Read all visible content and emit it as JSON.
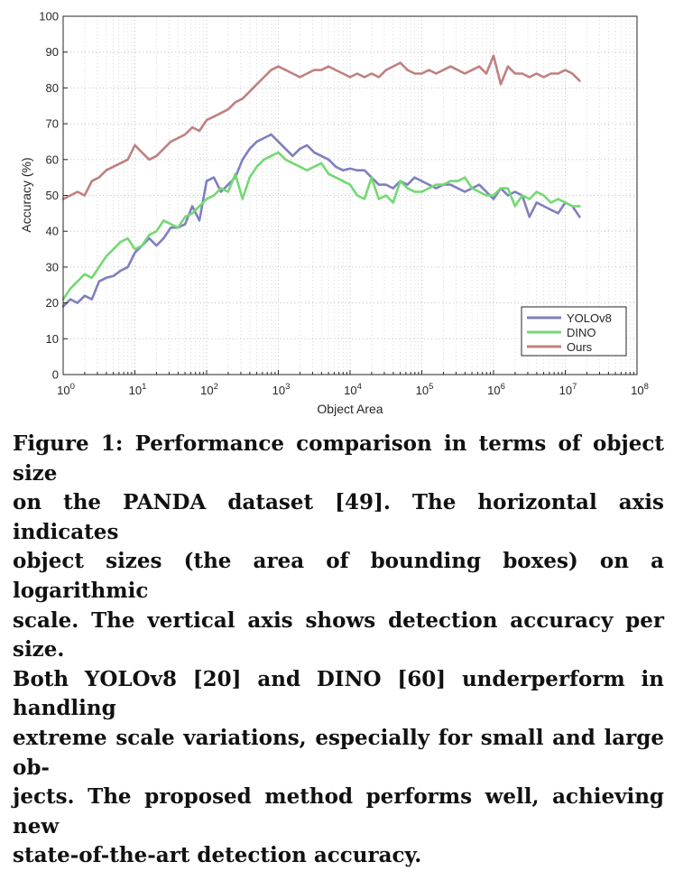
{
  "chart_data": {
    "type": "line",
    "xscale": "log",
    "xlabel": "Object Area",
    "ylabel": "Accuracy (%)",
    "xlim": [
      1,
      100000000
    ],
    "ylim": [
      0,
      100
    ],
    "grid": true,
    "legend_position": "bottom-right",
    "y_ticks": [
      "0",
      "10",
      "20",
      "30",
      "40",
      "50",
      "60",
      "70",
      "80",
      "90",
      "100"
    ],
    "x_ticks": [
      {
        "base": "10",
        "exp": "0"
      },
      {
        "base": "10",
        "exp": "1"
      },
      {
        "base": "10",
        "exp": "2"
      },
      {
        "base": "10",
        "exp": "3"
      },
      {
        "base": "10",
        "exp": "4"
      },
      {
        "base": "10",
        "exp": "5"
      },
      {
        "base": "10",
        "exp": "6"
      },
      {
        "base": "10",
        "exp": "7"
      },
      {
        "base": "10",
        "exp": "8"
      }
    ],
    "series": [
      {
        "name": "YOLOv8",
        "color": "#7f7fbf",
        "log10_x": [
          0,
          0.1,
          0.2,
          0.3,
          0.4,
          0.5,
          0.6,
          0.7,
          0.8,
          0.9,
          1,
          1.1,
          1.2,
          1.3,
          1.4,
          1.5,
          1.6,
          1.7,
          1.8,
          1.9,
          2,
          2.1,
          2.2,
          2.3,
          2.4,
          2.5,
          2.6,
          2.7,
          2.8,
          2.9,
          3,
          3.1,
          3.2,
          3.3,
          3.4,
          3.5,
          3.6,
          3.7,
          3.8,
          3.9,
          4,
          4.1,
          4.2,
          4.3,
          4.4,
          4.5,
          4.6,
          4.7,
          4.8,
          4.9,
          5,
          5.1,
          5.2,
          5.3,
          5.4,
          5.5,
          5.6,
          5.7,
          5.8,
          5.9,
          6,
          6.1,
          6.2,
          6.3,
          6.4,
          6.5,
          6.6,
          6.7,
          6.8,
          6.9,
          7,
          7.1,
          7.2
        ],
        "values": [
          19,
          21,
          20,
          22,
          21,
          26,
          27,
          27.5,
          29,
          30,
          34,
          36,
          38,
          36,
          38,
          41,
          41,
          42,
          47,
          43,
          54,
          55,
          51,
          53,
          55,
          60,
          63,
          65,
          66,
          67,
          65,
          63,
          61,
          63,
          64,
          62,
          61,
          60,
          58,
          57,
          57.5,
          57,
          57,
          55,
          53,
          53,
          52,
          54,
          53,
          55,
          54,
          53,
          52,
          53,
          53,
          52,
          51,
          52,
          53,
          51,
          49,
          52,
          50,
          51,
          50,
          44,
          48,
          47,
          46,
          45,
          48,
          47,
          44
        ]
      },
      {
        "name": "DINO",
        "color": "#73d973",
        "log10_x": [
          0,
          0.1,
          0.2,
          0.3,
          0.4,
          0.5,
          0.6,
          0.7,
          0.8,
          0.9,
          1,
          1.1,
          1.2,
          1.3,
          1.4,
          1.5,
          1.6,
          1.7,
          1.8,
          1.9,
          2,
          2.1,
          2.2,
          2.3,
          2.4,
          2.5,
          2.6,
          2.7,
          2.8,
          2.9,
          3,
          3.1,
          3.2,
          3.3,
          3.4,
          3.5,
          3.6,
          3.7,
          3.8,
          3.9,
          4,
          4.1,
          4.2,
          4.3,
          4.4,
          4.5,
          4.6,
          4.7,
          4.8,
          4.9,
          5,
          5.1,
          5.2,
          5.3,
          5.4,
          5.5,
          5.6,
          5.7,
          5.8,
          5.9,
          6,
          6.1,
          6.2,
          6.3,
          6.4,
          6.5,
          6.6,
          6.7,
          6.8,
          6.9,
          7,
          7.1,
          7.2
        ],
        "values": [
          21,
          24,
          26,
          28,
          27,
          30,
          33,
          35,
          37,
          38,
          35,
          36,
          39,
          40,
          43,
          42,
          41,
          44,
          45,
          47,
          49,
          50,
          52,
          51,
          56,
          49,
          55,
          58,
          60,
          61,
          62,
          60,
          59,
          58,
          57,
          58,
          59,
          56,
          55,
          54,
          53,
          50,
          49,
          55,
          49,
          50,
          48,
          54,
          52,
          51,
          51,
          52,
          53,
          53,
          54,
          54,
          55,
          52,
          51,
          50,
          50,
          52,
          52,
          47,
          50,
          49,
          51,
          50,
          48,
          49,
          48,
          47,
          47
        ]
      },
      {
        "name": "Ours",
        "color": "#c08080",
        "log10_x": [
          0,
          0.1,
          0.2,
          0.3,
          0.4,
          0.5,
          0.6,
          0.7,
          0.8,
          0.9,
          1,
          1.1,
          1.2,
          1.3,
          1.4,
          1.5,
          1.6,
          1.7,
          1.8,
          1.9,
          2,
          2.1,
          2.2,
          2.3,
          2.4,
          2.5,
          2.6,
          2.7,
          2.8,
          2.9,
          3,
          3.1,
          3.2,
          3.3,
          3.4,
          3.5,
          3.6,
          3.7,
          3.8,
          3.9,
          4,
          4.1,
          4.2,
          4.3,
          4.4,
          4.5,
          4.6,
          4.7,
          4.8,
          4.9,
          5,
          5.1,
          5.2,
          5.3,
          5.4,
          5.5,
          5.6,
          5.7,
          5.8,
          5.9,
          6,
          6.1,
          6.2,
          6.3,
          6.4,
          6.5,
          6.6,
          6.7,
          6.8,
          6.9,
          7,
          7.1,
          7.2
        ],
        "values": [
          49,
          50,
          51,
          50,
          54,
          55,
          57,
          58,
          59,
          60,
          64,
          62,
          60,
          61,
          63,
          65,
          66,
          67,
          69,
          68,
          71,
          72,
          73,
          74,
          76,
          77,
          79,
          81,
          83,
          85,
          86,
          85,
          84,
          83,
          84,
          85,
          85,
          86,
          85,
          84,
          83,
          84,
          83,
          84,
          83,
          85,
          86,
          87,
          85,
          84,
          84,
          85,
          84,
          85,
          86,
          85,
          84,
          85,
          86,
          84,
          89,
          81,
          86,
          84,
          84,
          83,
          84,
          83,
          84,
          84,
          85,
          84,
          82
        ]
      }
    ]
  },
  "caption": {
    "lines": [
      "Figure 1: Performance comparison in terms of object size",
      "on the PANDA dataset [49]. The horizontal axis indicates",
      "object sizes (the area of bounding boxes) on a logarithmic",
      "scale. The vertical axis shows detection accuracy per size.",
      "Both YOLOv8 [20] and DINO [60] underperform in handling",
      "extreme scale variations, especially for small and large ob-",
      "jects. The proposed method performs well, achieving new",
      "state-of-the-art detection accuracy."
    ]
  }
}
